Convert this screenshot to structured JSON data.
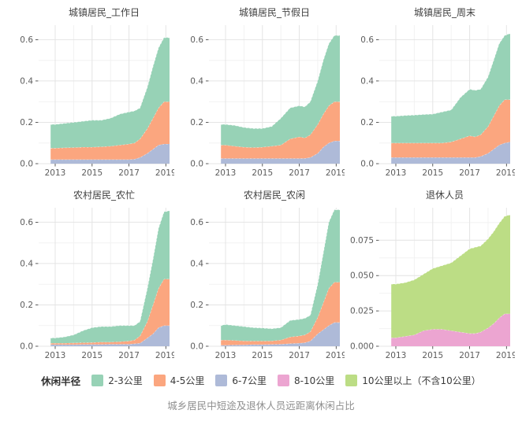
{
  "caption": "城乡居民中短途及退休人员远距离休闲占比",
  "legend": {
    "title": "休闲半径",
    "items": [
      {
        "label": "2-3公里",
        "color": "#97D2B6"
      },
      {
        "label": "4-5公里",
        "color": "#FBA67F"
      },
      {
        "label": "6-7公里",
        "color": "#AEBAD8"
      },
      {
        "label": "8-10公里",
        "color": "#ECA5D1"
      },
      {
        "label": "10公里以上（不含10公里）",
        "color": "#BCDD85"
      }
    ]
  },
  "chart_data": {
    "type": "area",
    "stacked": true,
    "grid": true,
    "legend_position": "bottom",
    "x_label": "",
    "y_label": "",
    "x": [
      2012.75,
      2013,
      2013.5,
      2014,
      2014.5,
      2015,
      2015.5,
      2016,
      2016.5,
      2017,
      2017.3,
      2017.6,
      2018,
      2018.3,
      2018.6,
      2018.9,
      2019.2
    ],
    "x_range": [
      2012.1,
      2019.2
    ],
    "x_ticks": [
      2013,
      2015,
      2017,
      2019
    ],
    "x_minor": [
      2014,
      2016,
      2018
    ],
    "facets": [
      {
        "key": "urban-workday",
        "title": "城镇居民_工作日",
        "y_max": 0.67,
        "y_tick_values": [
          0,
          0.2,
          0.4,
          0.6
        ],
        "y_tick_labels": [
          "0.0",
          "0.2",
          "0.4",
          "0.6"
        ],
        "series": [
          {
            "name": "6-7公里",
            "color": "#AEBAD8",
            "values": [
              0.02,
              0.02,
              0.02,
              0.02,
              0.02,
              0.02,
              0.02,
              0.02,
              0.02,
              0.02,
              0.022,
              0.03,
              0.05,
              0.07,
              0.09,
              0.095,
              0.095
            ]
          },
          {
            "name": "4-5公里",
            "color": "#FBA67F",
            "values": [
              0.055,
              0.055,
              0.057,
              0.058,
              0.06,
              0.06,
              0.062,
              0.065,
              0.07,
              0.075,
              0.078,
              0.09,
              0.12,
              0.15,
              0.18,
              0.205,
              0.205
            ]
          },
          {
            "name": "2-3公里",
            "color": "#97D2B6",
            "values": [
              0.115,
              0.115,
              0.118,
              0.122,
              0.125,
              0.13,
              0.128,
              0.135,
              0.15,
              0.155,
              0.155,
              0.15,
              0.2,
              0.25,
              0.29,
              0.31,
              0.31
            ]
          }
        ]
      },
      {
        "key": "urban-holiday",
        "title": "城镇居民_节假日",
        "y_max": 0.67,
        "y_tick_values": [
          0,
          0.2,
          0.4,
          0.6
        ],
        "y_tick_labels": [
          "0.0",
          "0.2",
          "0.4",
          "0.6"
        ],
        "series": [
          {
            "name": "6-7公里",
            "color": "#AEBAD8",
            "values": [
              0.025,
              0.025,
              0.025,
              0.025,
              0.025,
              0.025,
              0.025,
              0.025,
              0.025,
              0.025,
              0.026,
              0.03,
              0.05,
              0.08,
              0.1,
              0.11,
              0.11
            ]
          },
          {
            "name": "4-5公里",
            "color": "#FBA67F",
            "values": [
              0.065,
              0.065,
              0.06,
              0.055,
              0.053,
              0.055,
              0.06,
              0.065,
              0.095,
              0.105,
              0.099,
              0.11,
              0.14,
              0.16,
              0.18,
              0.19,
              0.19
            ]
          },
          {
            "name": "2-3公里",
            "color": "#97D2B6",
            "values": [
              0.1,
              0.1,
              0.1,
              0.095,
              0.092,
              0.09,
              0.095,
              0.13,
              0.15,
              0.15,
              0.15,
              0.16,
              0.21,
              0.26,
              0.3,
              0.32,
              0.32
            ]
          }
        ]
      },
      {
        "key": "urban-weekend",
        "title": "城镇居民_周末",
        "y_max": 0.67,
        "y_tick_values": [
          0,
          0.2,
          0.4,
          0.6
        ],
        "y_tick_labels": [
          "0.0",
          "0.2",
          "0.4",
          "0.6"
        ],
        "series": [
          {
            "name": "6-7公里",
            "color": "#AEBAD8",
            "values": [
              0.03,
              0.03,
              0.03,
              0.03,
              0.03,
              0.03,
              0.03,
              0.03,
              0.03,
              0.03,
              0.03,
              0.035,
              0.05,
              0.07,
              0.09,
              0.1,
              0.105
            ]
          },
          {
            "name": "4-5公里",
            "color": "#FBA67F",
            "values": [
              0.07,
              0.07,
              0.07,
              0.07,
              0.07,
              0.07,
              0.07,
              0.075,
              0.09,
              0.105,
              0.1,
              0.105,
              0.13,
              0.16,
              0.19,
              0.21,
              0.205
            ]
          },
          {
            "name": "2-3公里",
            "color": "#97D2B6",
            "values": [
              0.13,
              0.13,
              0.133,
              0.135,
              0.138,
              0.14,
              0.15,
              0.155,
              0.2,
              0.225,
              0.225,
              0.22,
              0.24,
              0.27,
              0.3,
              0.31,
              0.32
            ]
          }
        ]
      },
      {
        "key": "rural-busy",
        "title": "农村居民_农忙",
        "y_max": 0.67,
        "y_tick_values": [
          0,
          0.2,
          0.4,
          0.6
        ],
        "y_tick_labels": [
          "0.0",
          "0.2",
          "0.4",
          "0.6"
        ],
        "series": [
          {
            "name": "6-7公里",
            "color": "#AEBAD8",
            "values": [
              0.008,
              0.008,
              0.008,
              0.008,
              0.009,
              0.009,
              0.009,
              0.01,
              0.01,
              0.01,
              0.012,
              0.015,
              0.04,
              0.06,
              0.09,
              0.1,
              0.1
            ]
          },
          {
            "name": "4-5公里",
            "color": "#FBA67F",
            "values": [
              0.007,
              0.007,
              0.007,
              0.008,
              0.008,
              0.009,
              0.011,
              0.01,
              0.012,
              0.015,
              0.018,
              0.035,
              0.08,
              0.14,
              0.19,
              0.225,
              0.225
            ]
          },
          {
            "name": "2-3公里",
            "color": "#97D2B6",
            "values": [
              0.025,
              0.025,
              0.03,
              0.039,
              0.058,
              0.072,
              0.075,
              0.075,
              0.078,
              0.075,
              0.07,
              0.07,
              0.16,
              0.22,
              0.29,
              0.325,
              0.33
            ]
          }
        ]
      },
      {
        "key": "rural-slack",
        "title": "农村居民_农闲",
        "y_max": 0.67,
        "y_tick_values": [
          0,
          0.2,
          0.4,
          0.6
        ],
        "y_tick_labels": [
          "0.0",
          "0.2",
          "0.4",
          "0.6"
        ],
        "series": [
          {
            "name": "6-7公里",
            "color": "#AEBAD8",
            "values": [
              0.005,
              0.005,
              0.006,
              0.007,
              0.008,
              0.008,
              0.009,
              0.01,
              0.013,
              0.015,
              0.017,
              0.025,
              0.06,
              0.08,
              0.1,
              0.115,
              0.115
            ]
          },
          {
            "name": "4-5公里",
            "color": "#FBA67F",
            "values": [
              0.025,
              0.025,
              0.022,
              0.019,
              0.017,
              0.017,
              0.017,
              0.02,
              0.032,
              0.035,
              0.038,
              0.045,
              0.08,
              0.13,
              0.18,
              0.195,
              0.195
            ]
          },
          {
            "name": "2-3公里",
            "color": "#97D2B6",
            "values": [
              0.07,
              0.075,
              0.072,
              0.069,
              0.065,
              0.063,
              0.059,
              0.06,
              0.08,
              0.08,
              0.08,
              0.08,
              0.16,
              0.24,
              0.32,
              0.35,
              0.35
            ]
          }
        ]
      },
      {
        "key": "retirees",
        "title": "退休人员",
        "y_max": 0.098,
        "y_tick_values": [
          0,
          0.025,
          0.05,
          0.075
        ],
        "y_tick_labels": [
          "0.000",
          "0.025",
          "0.050",
          "0.075"
        ],
        "series": [
          {
            "name": "8-10公里",
            "color": "#ECA5D1",
            "values": [
              0.006,
              0.006,
              0.007,
              0.008,
              0.011,
              0.012,
              0.012,
              0.011,
              0.01,
              0.009,
              0.009,
              0.01,
              0.013,
              0.016,
              0.02,
              0.023,
              0.023
            ]
          },
          {
            "name": "10公里以上（不含10公里）",
            "color": "#BCDD85",
            "values": [
              0.038,
              0.038,
              0.038,
              0.039,
              0.04,
              0.043,
              0.045,
              0.048,
              0.054,
              0.06,
              0.061,
              0.061,
              0.063,
              0.065,
              0.067,
              0.069,
              0.07
            ]
          }
        ]
      }
    ]
  }
}
